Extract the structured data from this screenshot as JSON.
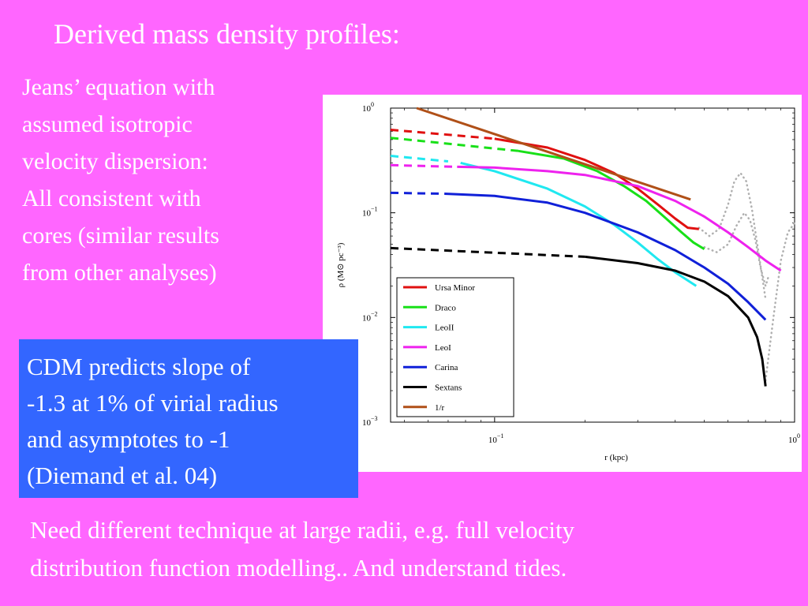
{
  "slide": {
    "title": "Derived mass density profiles:",
    "left_lines": [
      "Jeans’ equation with",
      "assumed isotropic",
      "velocity dispersion:",
      "All consistent with",
      "cores (similar results",
      "from other analyses)"
    ],
    "cdm_lines": [
      "CDM predicts slope of",
      "-1.3 at 1% of virial radius",
      "and asymptotes to -1",
      "(Diemand et al. 04)"
    ],
    "bottom_lines": [
      "Need different technique at large radii, e.g. full velocity",
      "distribution function modelling.. And understand tides."
    ]
  },
  "colors": {
    "background": "#ff66ff",
    "box": "#3366ff",
    "text": "#ffffff"
  },
  "chart_data": {
    "type": "line",
    "x_scale": "log",
    "y_scale": "log",
    "xlim": [
      0.045,
      1.0
    ],
    "ylim": [
      0.001,
      1.0
    ],
    "xlabel": "r (kpc)",
    "ylabel": "ρ (M⊙ pc⁻³)",
    "x_ticks": [
      {
        "base": "10",
        "exp": "−1",
        "value": 0.1
      },
      {
        "base": "10",
        "exp": "0",
        "value": 1.0
      }
    ],
    "y_ticks": [
      {
        "base": "10",
        "exp": "0",
        "value": 1.0
      },
      {
        "base": "10",
        "exp": "−1",
        "value": 0.1
      },
      {
        "base": "10",
        "exp": "−2",
        "value": 0.01
      },
      {
        "base": "10",
        "exp": "−3",
        "value": 0.001
      }
    ],
    "legend_position": "bottom-left",
    "series": [
      {
        "name": "Ursa Minor",
        "color": "#e01010",
        "dashed": {
          "x": [
            0.045,
            0.1
          ],
          "y": [
            0.62,
            0.51
          ]
        },
        "solid": {
          "x": [
            0.1,
            0.15,
            0.2,
            0.25,
            0.3,
            0.35,
            0.4,
            0.44,
            0.48
          ],
          "y": [
            0.51,
            0.42,
            0.32,
            0.24,
            0.17,
            0.12,
            0.088,
            0.072,
            0.07
          ]
        }
      },
      {
        "name": "Draco",
        "color": "#18e018",
        "dashed": {
          "x": [
            0.045,
            0.12
          ],
          "y": [
            0.52,
            0.39
          ]
        },
        "solid": {
          "x": [
            0.12,
            0.17,
            0.22,
            0.27,
            0.32,
            0.37,
            0.42,
            0.46,
            0.5
          ],
          "y": [
            0.39,
            0.33,
            0.25,
            0.18,
            0.13,
            0.09,
            0.065,
            0.052,
            0.045
          ]
        }
      },
      {
        "name": "LeoII",
        "color": "#20e8f0",
        "dashed": {
          "x": [
            0.045,
            0.07
          ],
          "y": [
            0.35,
            0.31
          ]
        },
        "solid": {
          "x": [
            0.077,
            0.1,
            0.15,
            0.2,
            0.25,
            0.3,
            0.35,
            0.4,
            0.47
          ],
          "y": [
            0.3,
            0.25,
            0.17,
            0.115,
            0.077,
            0.052,
            0.036,
            0.027,
            0.02
          ]
        }
      },
      {
        "name": "LeoI",
        "color": "#ee22ee",
        "dashed": {
          "x": [
            0.045,
            0.075
          ],
          "y": [
            0.285,
            0.275
          ]
        },
        "solid": {
          "x": [
            0.075,
            0.1,
            0.15,
            0.2,
            0.3,
            0.4,
            0.5,
            0.6,
            0.7,
            0.8,
            0.9
          ],
          "y": [
            0.275,
            0.27,
            0.25,
            0.23,
            0.18,
            0.13,
            0.092,
            0.065,
            0.047,
            0.035,
            0.028
          ]
        }
      },
      {
        "name": "Carina",
        "color": "#1020d8",
        "dashed": {
          "x": [
            0.045,
            0.068
          ],
          "y": [
            0.155,
            0.152
          ]
        },
        "solid": {
          "x": [
            0.068,
            0.1,
            0.15,
            0.2,
            0.3,
            0.4,
            0.5,
            0.6,
            0.7,
            0.8
          ],
          "y": [
            0.152,
            0.145,
            0.125,
            0.1,
            0.065,
            0.044,
            0.03,
            0.021,
            0.014,
            0.0095
          ]
        }
      },
      {
        "name": "Sextans",
        "color": "#000000",
        "dashed": {
          "x": [
            0.045,
            0.2
          ],
          "y": [
            0.046,
            0.038
          ]
        },
        "solid": {
          "x": [
            0.2,
            0.3,
            0.4,
            0.5,
            0.6,
            0.7,
            0.75,
            0.78,
            0.8
          ],
          "y": [
            0.038,
            0.033,
            0.028,
            0.022,
            0.016,
            0.01,
            0.0065,
            0.004,
            0.0022
          ]
        }
      },
      {
        "name": "1/r",
        "color": "#b05018",
        "solid": {
          "x": [
            0.055,
            0.45
          ],
          "y": [
            1.0,
            0.134
          ]
        }
      }
    ],
    "gray_dotted": [
      {
        "x": [
          0.48,
          0.52,
          0.56,
          0.6,
          0.63,
          0.66,
          0.69,
          0.72,
          0.76,
          0.8
        ],
        "y": [
          0.072,
          0.06,
          0.07,
          0.12,
          0.2,
          0.24,
          0.2,
          0.11,
          0.04,
          0.015
        ]
      },
      {
        "x": [
          0.5,
          0.55,
          0.6,
          0.64,
          0.68,
          0.71,
          0.74,
          0.77,
          0.8,
          0.82
        ],
        "y": [
          0.047,
          0.042,
          0.05,
          0.075,
          0.1,
          0.085,
          0.055,
          0.03,
          0.02,
          0.025
        ]
      },
      {
        "x": [
          0.8,
          0.85,
          0.9,
          0.95,
          1.0
        ],
        "y": [
          0.0025,
          0.01,
          0.035,
          0.065,
          0.08
        ]
      }
    ]
  }
}
